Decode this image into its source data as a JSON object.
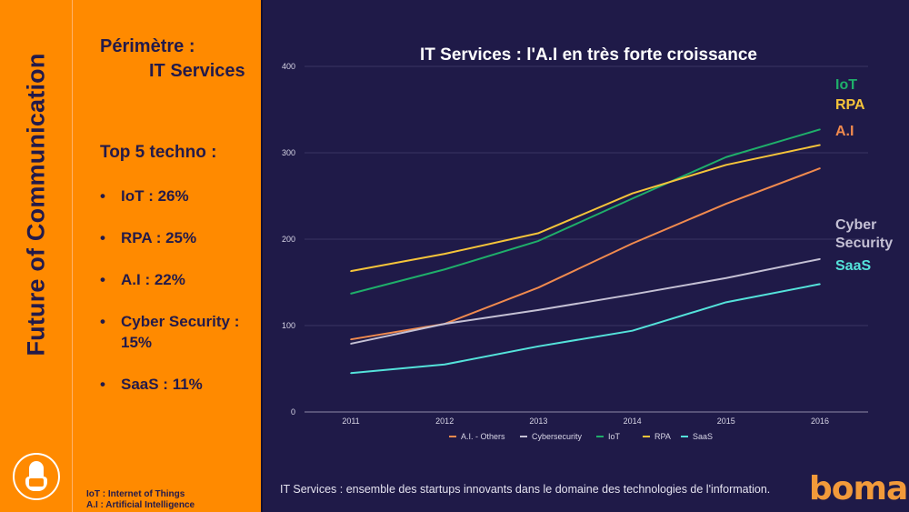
{
  "sidebar": {
    "vertical_title": "Future of Communication",
    "mascot_icon": "robot-mascot-icon"
  },
  "left": {
    "perimetre_label": "Périmètre :",
    "perimetre_value": "IT Services",
    "top5_title": "Top 5 techno :",
    "bullet": "•",
    "top5": [
      {
        "label": "IoT : 26%"
      },
      {
        "label": "RPA : 25%"
      },
      {
        "label": "A.I : 22%"
      },
      {
        "label": "Cyber Security : 15%"
      },
      {
        "label": "SaaS : 11%"
      }
    ],
    "glossary": [
      "IoT : Internet of Things",
      "A.I : Artificial Intelligence"
    ]
  },
  "footer": {
    "note": "IT Services : ensemble des startups innovants dans le domaine des technologies de l'information.",
    "logo": "boma"
  },
  "colors": {
    "background": "#1f1a48",
    "panel": "#ff8a00",
    "text_dark": "#231a4a",
    "logo": "#f29a3a"
  },
  "end_labels": [
    {
      "text": "IoT",
      "color": "#1fae6a"
    },
    {
      "text": "RPA",
      "color": "#f5c43a"
    },
    {
      "text": "A.I",
      "color": "#f08a4e"
    },
    {
      "text": "Cyber Security",
      "color": "#c4c0d4"
    },
    {
      "text": "SaaS",
      "color": "#54e2da"
    }
  ],
  "chart_data": {
    "type": "line",
    "title": "IT Services : l'A.I en très forte croissance",
    "xlabel": "",
    "ylabel": "",
    "x": [
      "2011",
      "2012",
      "2013",
      "2014",
      "2015",
      "2016"
    ],
    "ylim": [
      0,
      400
    ],
    "yticks": [
      0,
      100,
      200,
      300,
      400
    ],
    "grid": true,
    "legend_position": "bottom",
    "series": [
      {
        "name": "A.I. - Others",
        "color": "#f08a4e",
        "values": [
          84,
          102,
          144,
          195,
          241,
          282
        ]
      },
      {
        "name": "Cybersecurity",
        "color": "#c4c0d4",
        "values": [
          79,
          102,
          118,
          136,
          155,
          177
        ]
      },
      {
        "name": "IoT",
        "color": "#1fae6a",
        "values": [
          137,
          165,
          198,
          247,
          295,
          327
        ]
      },
      {
        "name": "RPA",
        "color": "#f5c43a",
        "values": [
          163,
          183,
          207,
          253,
          286,
          309
        ]
      },
      {
        "name": "SaaS",
        "color": "#54e2da",
        "values": [
          45,
          55,
          76,
          94,
          127,
          148
        ]
      }
    ]
  }
}
